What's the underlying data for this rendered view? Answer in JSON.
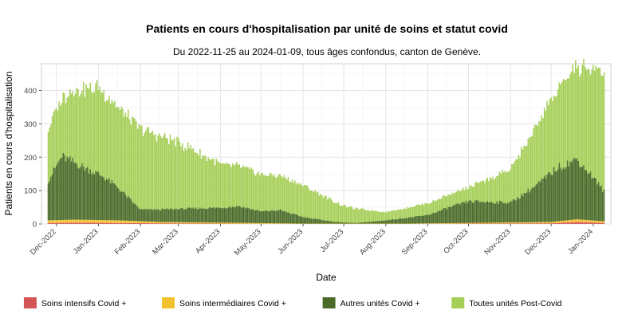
{
  "chart_data": {
    "type": "bar",
    "stacked": true,
    "title": "Patients en cours d'hospitalisation par unité de soins et statut covid",
    "subtitle": "Du 2022-11-25 au 2024-01-09, tous âges confondus, canton de Genève.",
    "xlabel": "Date",
    "ylabel": "Patients en cours d'hospitalisation",
    "x_start": "2022-11-25",
    "x_end": "2024-01-09",
    "ylim": [
      0,
      480
    ],
    "y_ticks": [
      0,
      100,
      200,
      300,
      400
    ],
    "x_tick_dates": [
      "2022-12-01",
      "2023-01-01",
      "2023-02-01",
      "2023-03-01",
      "2023-04-01",
      "2023-05-01",
      "2023-06-01",
      "2023-07-01",
      "2023-08-01",
      "2023-09-01",
      "2023-10-01",
      "2023-11-01",
      "2023-12-01",
      "2024-01-01"
    ],
    "x_tick_labels": [
      "Dec-2022",
      "Jan-2023",
      "Feb-2023",
      "Mar-2023",
      "Apr-2023",
      "May-2023",
      "Jun-2023",
      "Jul-2023",
      "Aug-2023",
      "Sep-2023",
      "Oct-2023",
      "Nov-2023",
      "Dec-2023",
      "Jan-2024"
    ],
    "grid": true,
    "legend_position": "bottom",
    "series": [
      {
        "name": "Soins intensifs Covid +",
        "color": "#d45555",
        "points": [
          [
            "2022-11-25",
            3
          ],
          [
            "2022-12-15",
            4
          ],
          [
            "2023-01-15",
            3
          ],
          [
            "2023-02-15",
            2
          ],
          [
            "2023-04-01",
            1
          ],
          [
            "2023-06-01",
            0
          ],
          [
            "2023-08-15",
            0
          ],
          [
            "2023-10-01",
            1
          ],
          [
            "2023-12-01",
            2
          ],
          [
            "2023-12-20",
            6
          ],
          [
            "2024-01-09",
            3
          ]
        ]
      },
      {
        "name": "Soins intermédiaires Covid +",
        "color": "#f2c12e",
        "points": [
          [
            "2022-11-25",
            8
          ],
          [
            "2022-12-15",
            9
          ],
          [
            "2023-01-15",
            8
          ],
          [
            "2023-02-15",
            4
          ],
          [
            "2023-04-01",
            3
          ],
          [
            "2023-06-01",
            1
          ],
          [
            "2023-08-15",
            1
          ],
          [
            "2023-10-01",
            2
          ],
          [
            "2023-12-01",
            4
          ],
          [
            "2023-12-20",
            8
          ],
          [
            "2024-01-09",
            5
          ]
        ]
      },
      {
        "name": "Autres unités Covid +",
        "color": "#4a6b28",
        "points": [
          [
            "2022-11-25",
            120
          ],
          [
            "2022-12-05",
            190
          ],
          [
            "2022-12-20",
            160
          ],
          [
            "2023-01-05",
            130
          ],
          [
            "2023-01-15",
            100
          ],
          [
            "2023-02-01",
            35
          ],
          [
            "2023-03-01",
            40
          ],
          [
            "2023-04-01",
            45
          ],
          [
            "2023-04-15",
            50
          ],
          [
            "2023-05-01",
            35
          ],
          [
            "2023-05-15",
            40
          ],
          [
            "2023-06-01",
            20
          ],
          [
            "2023-06-25",
            5
          ],
          [
            "2023-07-10",
            2
          ],
          [
            "2023-08-01",
            10
          ],
          [
            "2023-09-01",
            25
          ],
          [
            "2023-09-15",
            45
          ],
          [
            "2023-10-01",
            65
          ],
          [
            "2023-11-01",
            60
          ],
          [
            "2023-11-20",
            110
          ],
          [
            "2023-12-05",
            160
          ],
          [
            "2023-12-20",
            180
          ],
          [
            "2024-01-01",
            130
          ],
          [
            "2024-01-09",
            90
          ]
        ]
      },
      {
        "name": "Toutes unités Post-Covid",
        "color": "#a6cf58",
        "points": [
          [
            "2022-11-25",
            160
          ],
          [
            "2022-12-05",
            170
          ],
          [
            "2022-12-15",
            220
          ],
          [
            "2023-01-01",
            260
          ],
          [
            "2023-01-15",
            240
          ],
          [
            "2023-02-01",
            240
          ],
          [
            "2023-03-01",
            200
          ],
          [
            "2023-04-01",
            130
          ],
          [
            "2023-05-01",
            110
          ],
          [
            "2023-06-01",
            95
          ],
          [
            "2023-07-01",
            50
          ],
          [
            "2023-08-01",
            25
          ],
          [
            "2023-09-01",
            35
          ],
          [
            "2023-10-01",
            40
          ],
          [
            "2023-11-01",
            100
          ],
          [
            "2023-12-01",
            220
          ],
          [
            "2023-12-20",
            280
          ],
          [
            "2024-01-01",
            320
          ],
          [
            "2024-01-09",
            350
          ]
        ]
      }
    ]
  }
}
